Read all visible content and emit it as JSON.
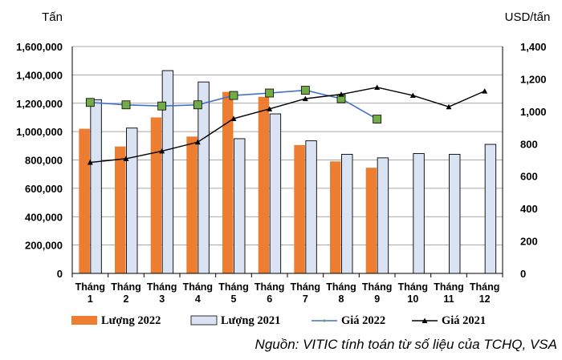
{
  "chart_data": {
    "type": "bar+line",
    "categories": [
      [
        "Tháng",
        "1"
      ],
      [
        "Tháng",
        "2"
      ],
      [
        "Tháng",
        "3"
      ],
      [
        "Tháng",
        "4"
      ],
      [
        "Tháng",
        "5"
      ],
      [
        "Tháng",
        "6"
      ],
      [
        "Tháng",
        "7"
      ],
      [
        "Tháng",
        "8"
      ],
      [
        "Tháng",
        "9"
      ],
      [
        "Tháng",
        "10"
      ],
      [
        "Tháng",
        "11"
      ],
      [
        "Tháng",
        "12"
      ]
    ],
    "left_axis": {
      "unit": "Tấn",
      "ylim": [
        0,
        1600000
      ],
      "ticks": [
        "0",
        "200,000",
        "400,000",
        "600,000",
        "800,000",
        "1,000,000",
        "1,200,000",
        "1,400,000",
        "1,600,000"
      ]
    },
    "right_axis": {
      "unit": "USD/tấn",
      "ylim": [
        0,
        1400
      ],
      "ticks": [
        "0",
        "200",
        "400",
        "600",
        "800",
        "1,000",
        "1,200",
        "1,400"
      ]
    },
    "series": [
      {
        "name": "Lượng 2022",
        "kind": "bar",
        "axis": "left",
        "color": "#ED7D31",
        "values": [
          1020000,
          895000,
          1100000,
          965000,
          1280000,
          1245000,
          905000,
          790000,
          745000,
          null,
          null,
          null
        ]
      },
      {
        "name": "Lượng 2021",
        "kind": "bar",
        "axis": "left",
        "color": "#DAE3F3",
        "values": [
          1225000,
          1025000,
          1430000,
          1350000,
          950000,
          1125000,
          935000,
          840000,
          815000,
          845000,
          840000,
          910000
        ]
      },
      {
        "name": "Giá 2022",
        "kind": "line",
        "axis": "right",
        "color": "#4472C4",
        "marker_color": "#70AD47",
        "values": [
          1055,
          1040,
          1033,
          1040,
          1098,
          1113,
          1130,
          1078,
          952,
          null,
          null,
          null
        ]
      },
      {
        "name": "Giá 2021",
        "kind": "line",
        "axis": "right",
        "color": "#000000",
        "values": [
          685,
          708,
          755,
          810,
          955,
          1015,
          1078,
          1105,
          1148,
          1098,
          1028,
          1125
        ]
      }
    ],
    "grid": true
  },
  "source": "Nguồn: VITIC tính toán từ số liệu của TCHQ, VSA"
}
